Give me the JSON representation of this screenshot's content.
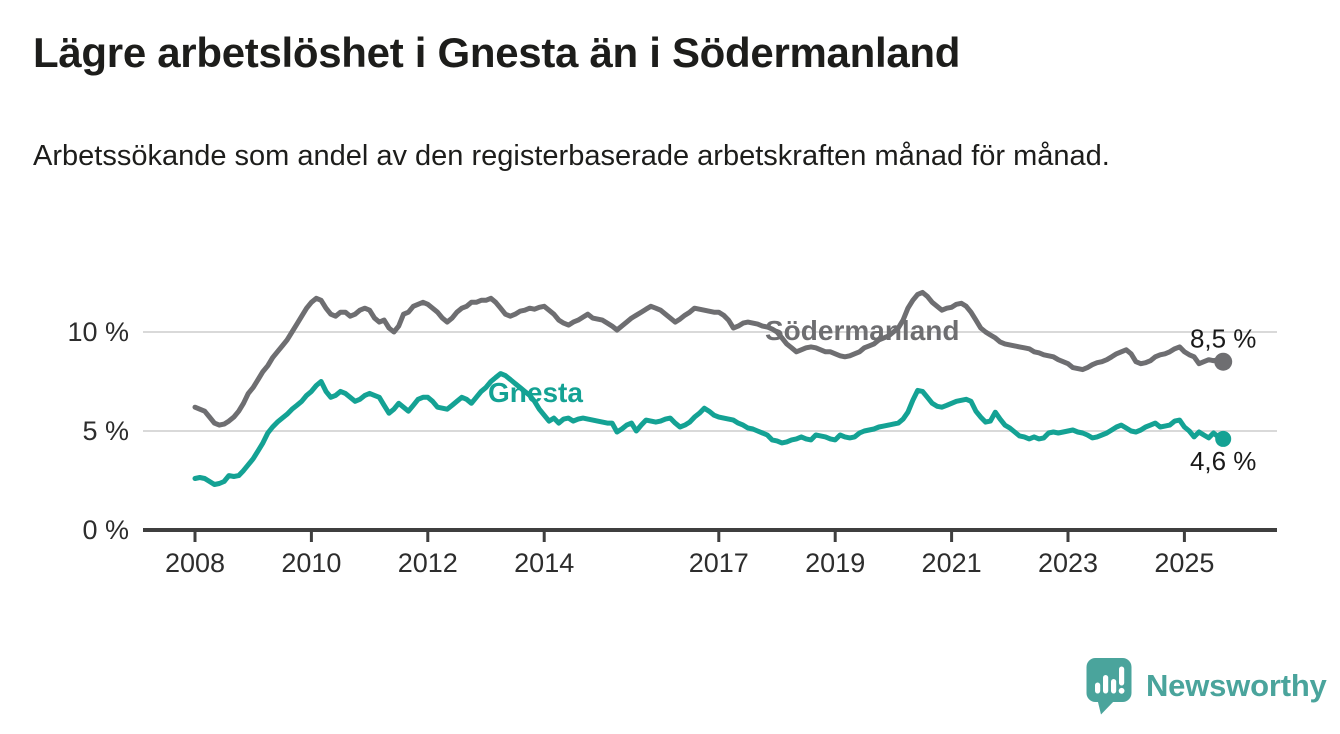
{
  "header": {
    "title": "Lägre arbetslöshet i Gnesta än i Södermanland",
    "subtitle": "Arbetssökande som andel av den registerbaserade arbetskraften månad för månad."
  },
  "chart_data": {
    "type": "line",
    "x_unit": "month",
    "start_year": 2008,
    "start_month": 1,
    "end_period": "2025-09",
    "grid": true,
    "legend_position": "inline-series-labels",
    "ylim": [
      0,
      12.5
    ],
    "grid_values": [
      5,
      10
    ],
    "y_ticks": [
      {
        "value": 0,
        "label": "0 %"
      },
      {
        "value": 5,
        "label": "5 %"
      },
      {
        "value": 10,
        "label": "10 %"
      }
    ],
    "x_ticks": [
      {
        "year": 2008,
        "label": "2008"
      },
      {
        "year": 2010,
        "label": "2010"
      },
      {
        "year": 2012,
        "label": "2012"
      },
      {
        "year": 2014,
        "label": "2014"
      },
      {
        "year": 2017,
        "label": "2017"
      },
      {
        "year": 2019,
        "label": "2019"
      },
      {
        "year": 2021,
        "label": "2021"
      },
      {
        "year": 2023,
        "label": "2023"
      },
      {
        "year": 2025,
        "label": "2025"
      }
    ],
    "series": [
      {
        "name": "Södermanland",
        "color": "#6e6e71",
        "end_label": "8,5 %",
        "last_value": 8.5,
        "values": [
          6.2,
          6.1,
          6.0,
          5.7,
          5.4,
          5.3,
          5.35,
          5.5,
          5.7,
          6.0,
          6.4,
          6.9,
          7.2,
          7.6,
          8.0,
          8.3,
          8.7,
          9.0,
          9.3,
          9.6,
          10.0,
          10.4,
          10.8,
          11.2,
          11.5,
          11.7,
          11.6,
          11.2,
          10.9,
          10.8,
          11.0,
          11.0,
          10.8,
          10.9,
          11.1,
          11.2,
          11.1,
          10.7,
          10.5,
          10.6,
          10.2,
          10.0,
          10.3,
          10.9,
          11.0,
          11.3,
          11.4,
          11.5,
          11.4,
          11.2,
          11.0,
          10.7,
          10.5,
          10.7,
          11.0,
          11.2,
          11.3,
          11.5,
          11.5,
          11.6,
          11.6,
          11.7,
          11.5,
          11.2,
          10.9,
          10.8,
          10.9,
          11.05,
          11.1,
          11.2,
          11.15,
          11.25,
          11.3,
          11.1,
          10.9,
          10.6,
          10.45,
          10.35,
          10.5,
          10.6,
          10.75,
          10.9,
          10.7,
          10.65,
          10.6,
          10.45,
          10.3,
          10.1,
          10.3,
          10.5,
          10.7,
          10.85,
          11.0,
          11.15,
          11.3,
          11.2,
          11.1,
          10.9,
          10.7,
          10.5,
          10.65,
          10.85,
          11.0,
          11.2,
          11.15,
          11.1,
          11.05,
          11.0,
          11.0,
          10.85,
          10.6,
          10.2,
          10.3,
          10.45,
          10.5,
          10.45,
          10.4,
          10.3,
          10.25,
          10.15,
          10.0,
          9.7,
          9.4,
          9.2,
          9.0,
          9.1,
          9.2,
          9.25,
          9.2,
          9.1,
          9.0,
          9.0,
          8.9,
          8.8,
          8.75,
          8.8,
          8.9,
          9.0,
          9.2,
          9.3,
          9.4,
          9.6,
          9.7,
          9.8,
          10.0,
          10.2,
          10.6,
          11.2,
          11.6,
          11.9,
          12.0,
          11.8,
          11.5,
          11.3,
          11.1,
          11.2,
          11.25,
          11.4,
          11.45,
          11.3,
          11.0,
          10.6,
          10.2,
          10.0,
          9.85,
          9.7,
          9.5,
          9.4,
          9.35,
          9.3,
          9.25,
          9.2,
          9.15,
          9.0,
          8.95,
          8.85,
          8.8,
          8.75,
          8.6,
          8.5,
          8.4,
          8.2,
          8.15,
          8.1,
          8.2,
          8.35,
          8.45,
          8.5,
          8.6,
          8.75,
          8.9,
          9.0,
          9.1,
          8.9,
          8.5,
          8.4,
          8.45,
          8.55,
          8.75,
          8.85,
          8.9,
          9.0,
          9.15,
          9.25,
          9.0,
          8.85,
          8.75,
          8.4,
          8.5,
          8.6,
          8.55,
          8.6,
          8.5
        ]
      },
      {
        "name": "Gnesta",
        "color": "#14a294",
        "end_label": "4,6 %",
        "last_value": 4.6,
        "values": [
          2.6,
          2.65,
          2.6,
          2.45,
          2.3,
          2.35,
          2.45,
          2.75,
          2.7,
          2.75,
          3.0,
          3.3,
          3.6,
          4.0,
          4.4,
          4.9,
          5.2,
          5.45,
          5.65,
          5.85,
          6.1,
          6.3,
          6.5,
          6.8,
          7.0,
          7.3,
          7.5,
          7.0,
          6.7,
          6.8,
          7.0,
          6.9,
          6.7,
          6.5,
          6.6,
          6.8,
          6.9,
          6.8,
          6.7,
          6.3,
          5.9,
          6.1,
          6.4,
          6.2,
          6.0,
          6.3,
          6.6,
          6.7,
          6.7,
          6.5,
          6.2,
          6.15,
          6.1,
          6.3,
          6.5,
          6.7,
          6.6,
          6.4,
          6.7,
          7.0,
          7.2,
          7.5,
          7.7,
          7.9,
          7.8,
          7.6,
          7.4,
          7.2,
          7.0,
          6.8,
          6.5,
          6.1,
          5.8,
          5.5,
          5.65,
          5.4,
          5.6,
          5.65,
          5.5,
          5.6,
          5.65,
          5.6,
          5.55,
          5.5,
          5.45,
          5.4,
          5.4,
          4.95,
          5.1,
          5.3,
          5.4,
          5.0,
          5.3,
          5.55,
          5.5,
          5.45,
          5.5,
          5.6,
          5.65,
          5.4,
          5.2,
          5.3,
          5.45,
          5.7,
          5.9,
          6.15,
          6.0,
          5.8,
          5.7,
          5.65,
          5.6,
          5.55,
          5.4,
          5.3,
          5.15,
          5.1,
          5.0,
          4.9,
          4.8,
          4.55,
          4.5,
          4.4,
          4.45,
          4.55,
          4.6,
          4.7,
          4.6,
          4.55,
          4.8,
          4.75,
          4.7,
          4.6,
          4.55,
          4.8,
          4.7,
          4.65,
          4.7,
          4.9,
          5.0,
          5.05,
          5.1,
          5.2,
          5.25,
          5.3,
          5.35,
          5.4,
          5.6,
          5.95,
          6.55,
          7.05,
          7.0,
          6.7,
          6.4,
          6.25,
          6.2,
          6.3,
          6.4,
          6.5,
          6.55,
          6.6,
          6.5,
          6.0,
          5.7,
          5.45,
          5.5,
          5.95,
          5.6,
          5.3,
          5.15,
          4.95,
          4.75,
          4.7,
          4.6,
          4.7,
          4.6,
          4.65,
          4.9,
          4.95,
          4.9,
          4.95,
          5.0,
          5.05,
          4.95,
          4.9,
          4.8,
          4.65,
          4.7,
          4.8,
          4.9,
          5.05,
          5.2,
          5.3,
          5.15,
          5.0,
          4.95,
          5.05,
          5.2,
          5.3,
          5.4,
          5.2,
          5.25,
          5.3,
          5.5,
          5.55,
          5.2,
          5.0,
          4.7,
          4.95,
          4.8,
          4.65,
          4.9,
          4.7,
          4.6
        ]
      }
    ]
  },
  "footer": {
    "brand": "Newsworthy",
    "brand_color": "#4aa49c"
  },
  "colors": {
    "background": "#ffffff",
    "grid": "#d9d9d9",
    "axis": "#3f3f3f",
    "axis_text": "#2d2d2d",
    "title_text": "#1d1d1b",
    "end_label_text": "#1a1a1a"
  }
}
